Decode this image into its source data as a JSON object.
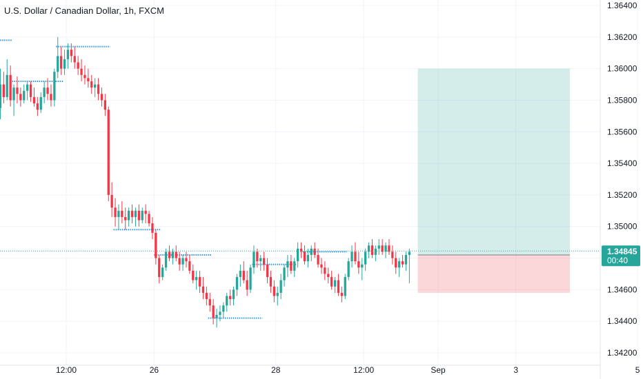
{
  "chart_data": {
    "type": "candlestick",
    "title": "U.S. Dollar / Canadian Dollar, 1h, FXCM",
    "y_ticks": [
      1.342,
      1.344,
      1.346,
      1.348,
      1.35,
      1.352,
      1.354,
      1.356,
      1.358,
      1.36,
      1.362,
      1.364
    ],
    "y_tick_labels": [
      "1.34200",
      "1.34400",
      "1.34600",
      "1.34800",
      "1.35000",
      "1.35200",
      "1.35400",
      "1.35600",
      "1.35800",
      "1.36000",
      "1.36200",
      "1.36400"
    ],
    "ylim": [
      1.3418,
      1.3648
    ],
    "x_labels": [
      {
        "label": "12:00",
        "bar": 20
      },
      {
        "label": "26",
        "bar": 46
      },
      {
        "label": "28",
        "bar": 82
      },
      {
        "label": "12:00",
        "bar": 108
      },
      {
        "label": "Sep",
        "bar": 130
      },
      {
        "label": "3",
        "bar": 153
      },
      {
        "label": "5",
        "bar": 189
      }
    ],
    "current_price": {
      "value": 1.34845,
      "label": "1.34845",
      "countdown": "00:40",
      "color": "#26a69a"
    },
    "up_color": "#26a69a",
    "down_color": "#f23645",
    "dotted_line_color": "#2196f3",
    "position": {
      "type": "long",
      "entry": 1.3482,
      "target": 1.36,
      "stop": 1.3458,
      "start_bar": 124,
      "end_bar": 169,
      "profit_color": "#26a69a",
      "loss_color": "#f23645"
    },
    "candles_ohlc": [
      [
        1.3575,
        1.36,
        1.3568,
        1.359
      ],
      [
        1.359,
        1.3598,
        1.3578,
        1.3582
      ],
      [
        1.3582,
        1.3606,
        1.358,
        1.3596
      ],
      [
        1.3596,
        1.3602,
        1.3576,
        1.358
      ],
      [
        1.358,
        1.359,
        1.357,
        1.3588
      ],
      [
        1.3588,
        1.3595,
        1.3578,
        1.3584
      ],
      [
        1.3584,
        1.3588,
        1.3576,
        1.358
      ],
      [
        1.358,
        1.359,
        1.3578,
        1.3586
      ],
      [
        1.3586,
        1.3592,
        1.358,
        1.359
      ],
      [
        1.359,
        1.3592,
        1.3579,
        1.3582
      ],
      [
        1.3582,
        1.3588,
        1.3576,
        1.3578
      ],
      [
        1.3578,
        1.3582,
        1.357,
        1.3574
      ],
      [
        1.3574,
        1.3585,
        1.3572,
        1.3582
      ],
      [
        1.3582,
        1.3592,
        1.3578,
        1.3588
      ],
      [
        1.3588,
        1.3594,
        1.358,
        1.3584
      ],
      [
        1.3584,
        1.359,
        1.3576,
        1.358
      ],
      [
        1.358,
        1.36,
        1.3576,
        1.3598
      ],
      [
        1.3598,
        1.362,
        1.3594,
        1.3608
      ],
      [
        1.3608,
        1.3614,
        1.3596,
        1.36
      ],
      [
        1.36,
        1.3612,
        1.3596,
        1.3606
      ],
      [
        1.3606,
        1.3616,
        1.36,
        1.3612
      ],
      [
        1.3612,
        1.3616,
        1.3604,
        1.3608
      ],
      [
        1.3608,
        1.3614,
        1.36,
        1.3604
      ],
      [
        1.3604,
        1.3608,
        1.3596,
        1.36
      ],
      [
        1.36,
        1.3606,
        1.3592,
        1.3596
      ],
      [
        1.3596,
        1.3602,
        1.359,
        1.3594
      ],
      [
        1.3594,
        1.36,
        1.3588,
        1.3592
      ],
      [
        1.3592,
        1.3596,
        1.3584,
        1.3588
      ],
      [
        1.3588,
        1.3594,
        1.3582,
        1.359
      ],
      [
        1.359,
        1.3594,
        1.358,
        1.3584
      ],
      [
        1.3584,
        1.3588,
        1.3576,
        1.358
      ],
      [
        1.358,
        1.3584,
        1.357,
        1.3574
      ],
      [
        1.3574,
        1.3576,
        1.3516,
        1.352
      ],
      [
        1.352,
        1.3528,
        1.3506,
        1.3512
      ],
      [
        1.3512,
        1.3518,
        1.35,
        1.3506
      ],
      [
        1.3506,
        1.3514,
        1.3498,
        1.351
      ],
      [
        1.351,
        1.3516,
        1.3502,
        1.3506
      ],
      [
        1.3506,
        1.3512,
        1.3498,
        1.3504
      ],
      [
        1.3504,
        1.3512,
        1.35,
        1.351
      ],
      [
        1.351,
        1.3514,
        1.3502,
        1.3506
      ],
      [
        1.3506,
        1.3512,
        1.35,
        1.351
      ],
      [
        1.351,
        1.3514,
        1.35,
        1.3504
      ],
      [
        1.3504,
        1.3512,
        1.3502,
        1.351
      ],
      [
        1.351,
        1.3514,
        1.3502,
        1.3508
      ],
      [
        1.3508,
        1.351,
        1.35,
        1.3502
      ],
      [
        1.3502,
        1.3506,
        1.3492,
        1.3496
      ],
      [
        1.3496,
        1.3498,
        1.3476,
        1.348
      ],
      [
        1.348,
        1.3482,
        1.3464,
        1.3468
      ],
      [
        1.3468,
        1.3476,
        1.3466,
        1.3474
      ],
      [
        1.3474,
        1.3486,
        1.3472,
        1.3484
      ],
      [
        1.3484,
        1.3488,
        1.3478,
        1.348
      ],
      [
        1.348,
        1.3486,
        1.3476,
        1.3484
      ],
      [
        1.3484,
        1.3488,
        1.3478,
        1.348
      ],
      [
        1.348,
        1.3484,
        1.3472,
        1.3476
      ],
      [
        1.3476,
        1.3482,
        1.3472,
        1.348
      ],
      [
        1.348,
        1.3484,
        1.3474,
        1.3478
      ],
      [
        1.3478,
        1.3482,
        1.347,
        1.3472
      ],
      [
        1.3472,
        1.3476,
        1.3464,
        1.3466
      ],
      [
        1.3466,
        1.3472,
        1.346,
        1.3468
      ],
      [
        1.3468,
        1.3472,
        1.3458,
        1.3462
      ],
      [
        1.3462,
        1.3468,
        1.3454,
        1.3458
      ],
      [
        1.3458,
        1.3462,
        1.345,
        1.3454
      ],
      [
        1.3454,
        1.3458,
        1.3446,
        1.345
      ],
      [
        1.345,
        1.3454,
        1.3438,
        1.3442
      ],
      [
        1.3442,
        1.3448,
        1.3436,
        1.3444
      ],
      [
        1.3444,
        1.345,
        1.344,
        1.3446
      ],
      [
        1.3446,
        1.3452,
        1.3442,
        1.345
      ],
      [
        1.345,
        1.3458,
        1.3446,
        1.3456
      ],
      [
        1.3456,
        1.346,
        1.345,
        1.3454
      ],
      [
        1.3454,
        1.3462,
        1.345,
        1.346
      ],
      [
        1.346,
        1.347,
        1.3456,
        1.3468
      ],
      [
        1.3468,
        1.3476,
        1.3462,
        1.3472
      ],
      [
        1.3472,
        1.3478,
        1.3464,
        1.3466
      ],
      [
        1.3466,
        1.3472,
        1.3456,
        1.346
      ],
      [
        1.346,
        1.3476,
        1.3458,
        1.3474
      ],
      [
        1.3474,
        1.3488,
        1.347,
        1.3484
      ],
      [
        1.3484,
        1.3486,
        1.3474,
        1.3478
      ],
      [
        1.3478,
        1.3482,
        1.3472,
        1.348
      ],
      [
        1.348,
        1.3484,
        1.3472,
        1.3476
      ],
      [
        1.3476,
        1.348,
        1.3464,
        1.3468
      ],
      [
        1.3468,
        1.3472,
        1.3458,
        1.3462
      ],
      [
        1.3462,
        1.3466,
        1.3452,
        1.3456
      ],
      [
        1.3456,
        1.3462,
        1.345,
        1.3458
      ],
      [
        1.3458,
        1.347,
        1.3454,
        1.3466
      ],
      [
        1.3466,
        1.3476,
        1.3462,
        1.3474
      ],
      [
        1.3474,
        1.3482,
        1.3468,
        1.3478
      ],
      [
        1.3478,
        1.3482,
        1.347,
        1.3472
      ],
      [
        1.3472,
        1.348,
        1.3468,
        1.3478
      ],
      [
        1.3478,
        1.349,
        1.3474,
        1.3486
      ],
      [
        1.3486,
        1.349,
        1.348,
        1.3484
      ],
      [
        1.3484,
        1.3488,
        1.3476,
        1.3478
      ],
      [
        1.3478,
        1.3486,
        1.3474,
        1.3482
      ],
      [
        1.3482,
        1.3488,
        1.3478,
        1.3486
      ],
      [
        1.3486,
        1.349,
        1.348,
        1.3482
      ],
      [
        1.3482,
        1.3486,
        1.3474,
        1.3476
      ],
      [
        1.3476,
        1.348,
        1.347,
        1.3474
      ],
      [
        1.3474,
        1.3478,
        1.3466,
        1.347
      ],
      [
        1.347,
        1.3474,
        1.3464,
        1.3468
      ],
      [
        1.3468,
        1.3472,
        1.346,
        1.3462
      ],
      [
        1.3462,
        1.3468,
        1.3458,
        1.3466
      ],
      [
        1.3466,
        1.347,
        1.3456,
        1.3458
      ],
      [
        1.3458,
        1.3462,
        1.3452,
        1.3456
      ],
      [
        1.3456,
        1.347,
        1.3454,
        1.3468
      ],
      [
        1.3468,
        1.348,
        1.3466,
        1.3478
      ],
      [
        1.3478,
        1.3488,
        1.3474,
        1.3484
      ],
      [
        1.3484,
        1.349,
        1.3476,
        1.3478
      ],
      [
        1.3478,
        1.3484,
        1.347,
        1.3474
      ],
      [
        1.3474,
        1.348,
        1.3466,
        1.3476
      ],
      [
        1.3476,
        1.3486,
        1.3472,
        1.3484
      ],
      [
        1.3484,
        1.349,
        1.348,
        1.3488
      ],
      [
        1.3488,
        1.3492,
        1.348,
        1.3482
      ],
      [
        1.3482,
        1.3488,
        1.3478,
        1.3486
      ],
      [
        1.3486,
        1.3492,
        1.3482,
        1.3488
      ],
      [
        1.3488,
        1.3492,
        1.3482,
        1.3484
      ],
      [
        1.3484,
        1.349,
        1.348,
        1.3488
      ],
      [
        1.3488,
        1.3492,
        1.3482,
        1.3484
      ],
      [
        1.3484,
        1.3488,
        1.3476,
        1.348
      ],
      [
        1.348,
        1.3484,
        1.347,
        1.3474
      ],
      [
        1.3474,
        1.348,
        1.3468,
        1.3478
      ],
      [
        1.3478,
        1.3482,
        1.3474,
        1.3476
      ],
      [
        1.3476,
        1.3484,
        1.3472,
        1.3482
      ],
      [
        1.3482,
        1.3486,
        1.3464,
        1.3484
      ]
    ]
  }
}
